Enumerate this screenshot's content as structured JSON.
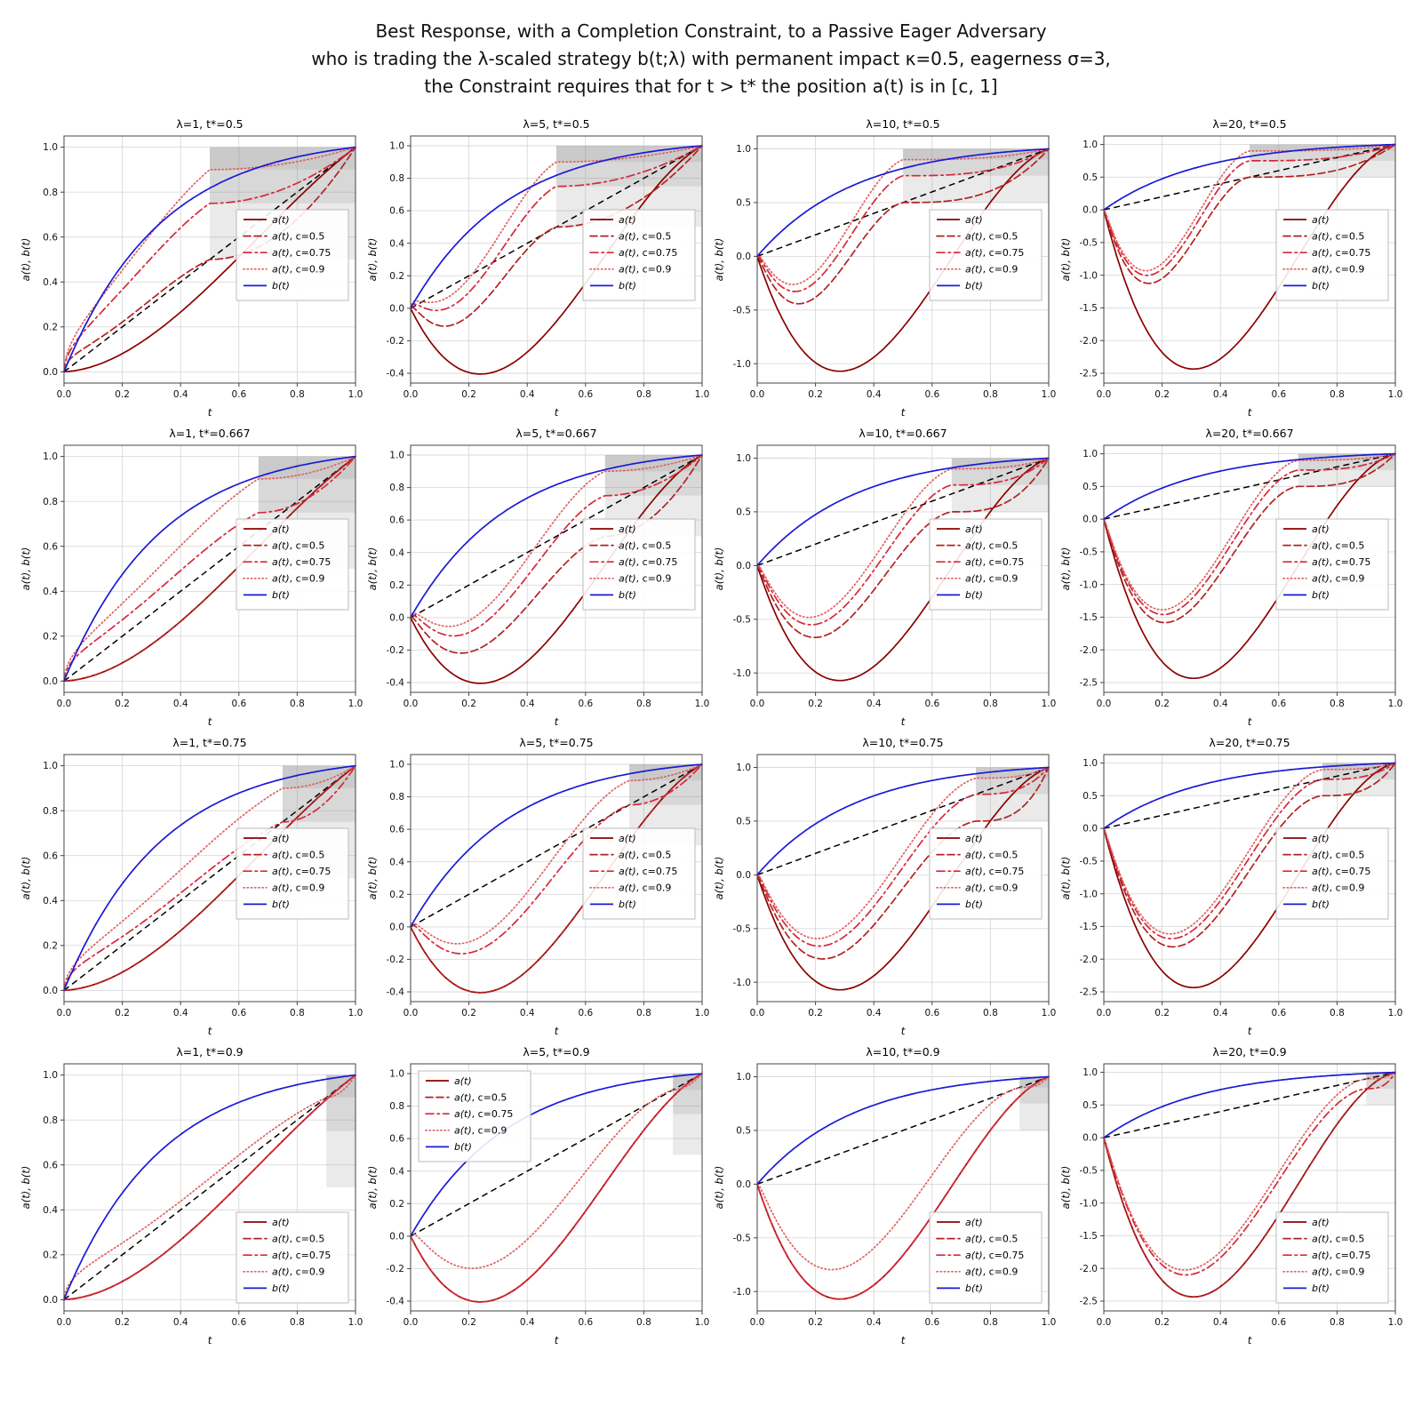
{
  "title": {
    "line1": "Best Response, with a Completion Constraint, to a Passive Eager Adversary",
    "line2": "who is trading the λ-scaled strategy b(t;λ) with permanent impact κ=0.5, eagerness σ=3,",
    "line3": "the Constraint requires that for t > t* the position a(t) is in [c, 1]"
  },
  "chart_data": {
    "type": "line",
    "figure_layout": "4x4 grid of subplots; rows vary t* in [0.5, 0.667, 0.75, 0.9]; columns vary λ in [1, 5, 10, 20]",
    "model": {
      "sigma": 3,
      "kappa": 0.5,
      "lambda_values": [
        1,
        5,
        10,
        20
      ],
      "t_star_values": [
        0.5,
        0.667,
        0.75,
        0.9
      ],
      "c_values": [
        0.5,
        0.75,
        0.9
      ],
      "depth_coef": 0.93,
      "b_formula": "b(t) = (1 - exp(-sigma*t)) / (1 - exp(-sigma)), concave from 0 to 1",
      "a_unconstrained_formula": "a(t) = t - depth_coef*lambda*t*(1-t)^2 ; dips to about -0.38 (λ=5), -1.05 (λ=10), -2.4 (λ=20) near t≈0.3",
      "a_constrained_note": "constrained curves reach level c at t = t*, then stay inside the shaded band [c, 1] until finishing at 1",
      "diagonal": "black dashed straight line from (0,0) to (1,1)"
    },
    "axes": {
      "xlabel": "t",
      "ylabel": "a(t), b(t)",
      "xticks": [
        0.0,
        0.2,
        0.4,
        0.6,
        0.8,
        1.0
      ],
      "grid": true
    },
    "legend": {
      "entries": [
        {
          "math": "a(t)",
          "suffix": ""
        },
        {
          "math": "a(t)",
          "suffix": ", c=0.5"
        },
        {
          "math": "a(t)",
          "suffix": ", c=0.75"
        },
        {
          "math": "a(t)",
          "suffix": ", c=0.9"
        },
        {
          "math": "b(t)",
          "suffix": ""
        }
      ]
    },
    "colors": {
      "a_solid": "#8b0000",
      "a_c05": "#b22222",
      "a_c075": "#d62839",
      "a_c09": "#e06060",
      "b_line": "#1a1ad6",
      "diagonal": "#000000",
      "shade": "#888888",
      "grid": "#d9d9d9",
      "frame": "#444444"
    },
    "subplots": [
      {
        "lambda": 1,
        "t_star": 0.5,
        "title": "λ=1, t*=0.5",
        "ylim": [
          -0.05,
          1.05
        ],
        "yticks": [
          0.0,
          0.2,
          0.4,
          0.6,
          0.8,
          1.0
        ],
        "legend_loc": "center-right"
      },
      {
        "lambda": 5,
        "t_star": 0.5,
        "title": "λ=5, t*=0.5",
        "ylim": [
          -0.46,
          1.06
        ],
        "yticks": [
          -0.4,
          -0.2,
          0.0,
          0.2,
          0.4,
          0.6,
          0.8,
          1.0
        ],
        "legend_loc": "center-right"
      },
      {
        "lambda": 10,
        "t_star": 0.5,
        "title": "λ=10, t*=0.5",
        "ylim": [
          -1.18,
          1.12
        ],
        "yticks": [
          -1.0,
          -0.5,
          0.0,
          0.5,
          1.0
        ],
        "legend_loc": "center-right"
      },
      {
        "lambda": 20,
        "t_star": 0.5,
        "title": "λ=20, t*=0.5",
        "ylim": [
          -2.65,
          1.13
        ],
        "yticks": [
          -2.5,
          -2.0,
          -1.5,
          -1.0,
          -0.5,
          0.0,
          0.5,
          1.0
        ],
        "legend_loc": "center-right"
      },
      {
        "lambda": 1,
        "t_star": 0.667,
        "title": "λ=1, t*=0.667",
        "ylim": [
          -0.05,
          1.05
        ],
        "yticks": [
          0.0,
          0.2,
          0.4,
          0.6,
          0.8,
          1.0
        ],
        "legend_loc": "center-right"
      },
      {
        "lambda": 5,
        "t_star": 0.667,
        "title": "λ=5, t*=0.667",
        "ylim": [
          -0.46,
          1.06
        ],
        "yticks": [
          -0.4,
          -0.2,
          0.0,
          0.2,
          0.4,
          0.6,
          0.8,
          1.0
        ],
        "legend_loc": "center-right"
      },
      {
        "lambda": 10,
        "t_star": 0.667,
        "title": "λ=10, t*=0.667",
        "ylim": [
          -1.18,
          1.12
        ],
        "yticks": [
          -1.0,
          -0.5,
          0.0,
          0.5,
          1.0
        ],
        "legend_loc": "center-right"
      },
      {
        "lambda": 20,
        "t_star": 0.667,
        "title": "λ=20, t*=0.667",
        "ylim": [
          -2.65,
          1.13
        ],
        "yticks": [
          -2.5,
          -2.0,
          -1.5,
          -1.0,
          -0.5,
          0.0,
          0.5,
          1.0
        ],
        "legend_loc": "center-right"
      },
      {
        "lambda": 1,
        "t_star": 0.75,
        "title": "λ=1, t*=0.75",
        "ylim": [
          -0.05,
          1.05
        ],
        "yticks": [
          0.0,
          0.2,
          0.4,
          0.6,
          0.8,
          1.0
        ],
        "legend_loc": "center-right"
      },
      {
        "lambda": 5,
        "t_star": 0.75,
        "title": "λ=5, t*=0.75",
        "ylim": [
          -0.46,
          1.06
        ],
        "yticks": [
          -0.4,
          -0.2,
          0.0,
          0.2,
          0.4,
          0.6,
          0.8,
          1.0
        ],
        "legend_loc": "center-right"
      },
      {
        "lambda": 10,
        "t_star": 0.75,
        "title": "λ=10, t*=0.75",
        "ylim": [
          -1.18,
          1.12
        ],
        "yticks": [
          -1.0,
          -0.5,
          0.0,
          0.5,
          1.0
        ],
        "legend_loc": "center-right"
      },
      {
        "lambda": 20,
        "t_star": 0.75,
        "title": "λ=20, t*=0.75",
        "ylim": [
          -2.65,
          1.13
        ],
        "yticks": [
          -2.5,
          -2.0,
          -1.5,
          -1.0,
          -0.5,
          0.0,
          0.5,
          1.0
        ],
        "legend_loc": "center-right"
      },
      {
        "lambda": 1,
        "t_star": 0.9,
        "title": "λ=1, t*=0.9",
        "ylim": [
          -0.05,
          1.05
        ],
        "yticks": [
          0.0,
          0.2,
          0.4,
          0.6,
          0.8,
          1.0
        ],
        "legend_loc": "lower-right"
      },
      {
        "lambda": 5,
        "t_star": 0.9,
        "title": "λ=5, t*=0.9",
        "ylim": [
          -0.46,
          1.06
        ],
        "yticks": [
          -0.4,
          -0.2,
          0.0,
          0.2,
          0.4,
          0.6,
          0.8,
          1.0
        ],
        "legend_loc": "upper-left"
      },
      {
        "lambda": 10,
        "t_star": 0.9,
        "title": "λ=10, t*=0.9",
        "ylim": [
          -1.18,
          1.12
        ],
        "yticks": [
          -1.0,
          -0.5,
          0.0,
          0.5,
          1.0
        ],
        "legend_loc": "lower-right"
      },
      {
        "lambda": 20,
        "t_star": 0.9,
        "title": "λ=20, t*=0.9",
        "ylim": [
          -2.65,
          1.13
        ],
        "yticks": [
          -2.5,
          -2.0,
          -1.5,
          -1.0,
          -0.5,
          0.0,
          0.5,
          1.0
        ],
        "legend_loc": "lower-right"
      }
    ]
  }
}
